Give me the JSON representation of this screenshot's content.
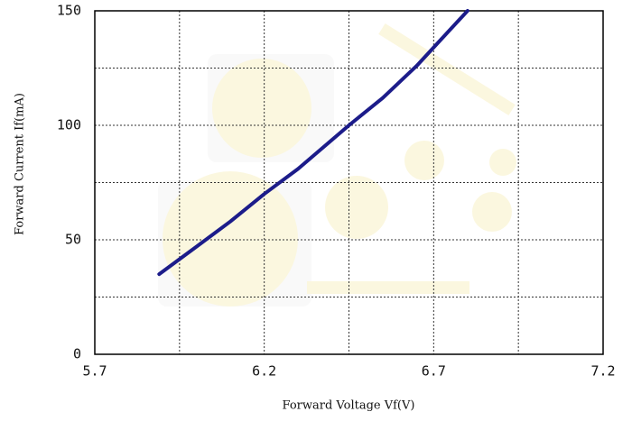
{
  "chart_data": {
    "type": "line",
    "x_label": "Forward Voltage Vf(V)",
    "y_label": "Forward Current If(mA)",
    "series": [
      {
        "color": "#1c1c8a",
        "x": [
          5.89,
          6.0,
          6.1,
          6.2,
          6.3,
          6.45,
          6.55,
          6.65,
          6.7,
          6.8
        ],
        "values": [
          35,
          47,
          58,
          70,
          81,
          100,
          112,
          126,
          134,
          150
        ]
      }
    ],
    "xlim": [
      5.7,
      7.2
    ],
    "xticks": [
      5.7,
      6.2,
      6.7,
      7.2
    ],
    "ylim": [
      0,
      150
    ],
    "yticks": [
      0,
      50,
      100,
      150
    ],
    "x_minor_grid": [
      5.95,
      6.45,
      6.95
    ],
    "y_minor_grid": [
      25,
      75,
      125
    ],
    "grid": true
  }
}
